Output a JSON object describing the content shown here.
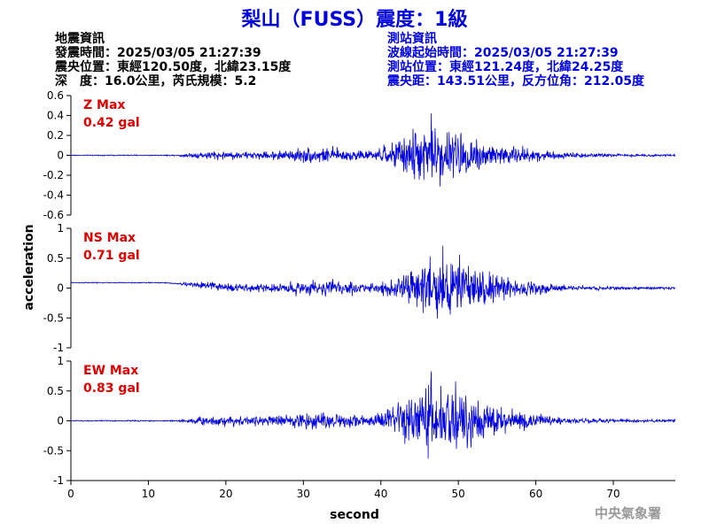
{
  "title": "梨山（FUSS）震度：1級",
  "quake_info": {
    "heading": "地震資訊",
    "origin_time": "發震時間：2025/03/05 21:27:39",
    "epicenter": "震央位置：東經120.50度，北緯23.15度",
    "depth_magnitude": "深　度：16.0公里，芮氏規模：5.2"
  },
  "station_info": {
    "heading": "測站資訊",
    "wave_start": "波線起始時間：2025/03/05 21:27:39",
    "location": "測站位置：東經121.24度，北緯24.25度",
    "distance": "震央距：143.51公里，反方位角：212.05度"
  },
  "credit": "中央氣象署",
  "colors": {
    "trace": "#0000dd",
    "max_label": "#dd0000",
    "title": "#0000dd"
  },
  "chart_data": [
    {
      "type": "line",
      "component": "Z",
      "max_label": "Z Max",
      "max_value": "0.42 gal",
      "peak": 0.42,
      "ylim": [
        -0.6,
        0.6
      ],
      "yticks": [
        -0.6,
        -0.4,
        -0.2,
        0,
        0.2,
        0.4,
        0.6
      ],
      "ytick_labels": [
        "-0.6",
        "-0.4",
        "-0.2",
        "0",
        "0.2",
        "0.4",
        "0.6"
      ],
      "offset": 0,
      "onset_s": 14,
      "peak_time_s": 46.5
    },
    {
      "type": "line",
      "component": "NS",
      "max_label": "NS Max",
      "max_value": "0.71 gal",
      "peak": 0.71,
      "ylim": [
        -1,
        1
      ],
      "yticks": [
        -1,
        -0.5,
        0,
        0.5,
        1
      ],
      "ytick_labels": [
        "-1",
        "-0.5",
        "0",
        "0.5",
        "1"
      ],
      "offset": 0.1,
      "onset_s": 14,
      "peak_time_s": 48
    },
    {
      "type": "line",
      "component": "EW",
      "max_label": "EW Max",
      "max_value": "0.83 gal",
      "peak": 0.83,
      "ylim": [
        -1,
        1
      ],
      "yticks": [
        -1,
        -0.5,
        0,
        0.5,
        1
      ],
      "ytick_labels": [
        "-1",
        "-0.5",
        "0",
        "0.5",
        "1"
      ],
      "offset": 0,
      "onset_s": 14,
      "peak_time_s": 46.5
    }
  ],
  "x_axis": {
    "label": "second",
    "xlim": [
      0,
      78
    ],
    "ticks": [
      0,
      10,
      20,
      30,
      40,
      50,
      60,
      70
    ],
    "tick_labels": [
      "0",
      "10",
      "20",
      "30",
      "40",
      "50",
      "60",
      "70"
    ]
  },
  "y_axis": {
    "label": "acceleration"
  }
}
